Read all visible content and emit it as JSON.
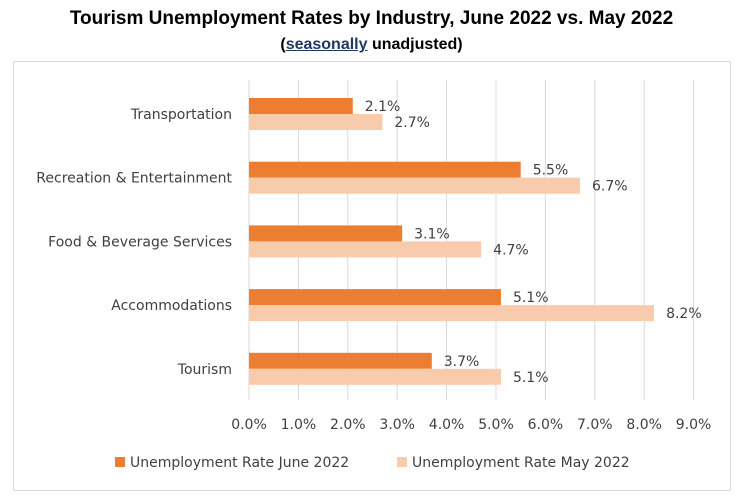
{
  "title": "Tourism Unemployment Rates by Industry, June 2022 vs. May 2022",
  "subtitle_link": "seasonally",
  "subtitle_rest": " unadjusted",
  "subtitle_open": "(",
  "subtitle_close": ")",
  "colors": {
    "june": "#ED7D31",
    "may": "#F8CBAD",
    "grid": "#d9d9d9",
    "text": "#404040"
  },
  "chart_data": {
    "type": "bar",
    "orientation": "horizontal",
    "categories": [
      "Transportation",
      "Recreation & Entertainment",
      "Food & Beverage Services",
      "Accommodations",
      "Tourism"
    ],
    "series": [
      {
        "name": "Unemployment Rate June 2022",
        "values": [
          2.1,
          5.5,
          3.1,
          5.1,
          3.7
        ],
        "labels": [
          "2.1%",
          "5.5%",
          "3.1%",
          "5.1%",
          "3.7%"
        ]
      },
      {
        "name": "Unemployment Rate May 2022",
        "values": [
          2.7,
          6.7,
          4.7,
          8.2,
          5.1
        ],
        "labels": [
          "2.7%",
          "6.7%",
          "4.7%",
          "8.2%",
          "5.1%"
        ]
      }
    ],
    "xlim": [
      0,
      9
    ],
    "xticks": [
      0,
      1,
      2,
      3,
      4,
      5,
      6,
      7,
      8,
      9
    ],
    "xtick_labels": [
      "0.0%",
      "1.0%",
      "2.0%",
      "3.0%",
      "4.0%",
      "5.0%",
      "6.0%",
      "7.0%",
      "8.0%",
      "9.0%"
    ],
    "grid": true,
    "legend": "bottom"
  }
}
